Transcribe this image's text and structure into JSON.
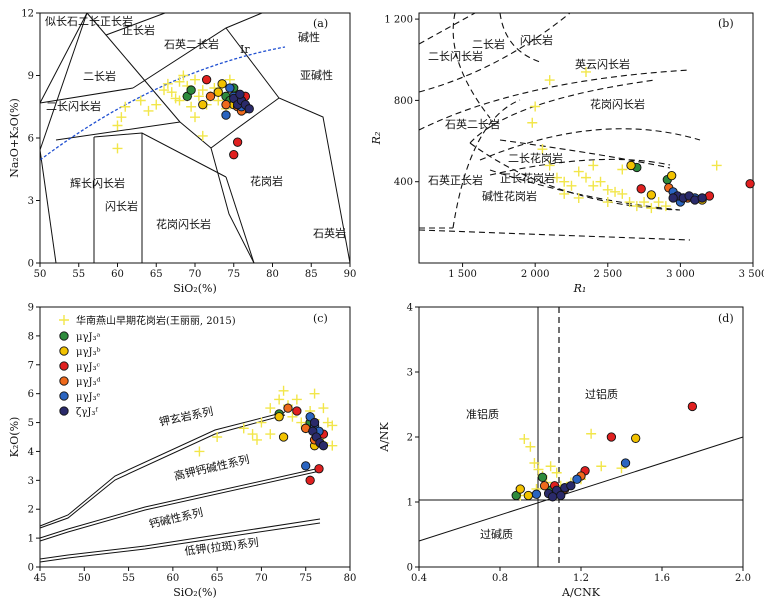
{
  "colors": {
    "axis": "#111111",
    "cross": "#f2e64a",
    "Ir_line": "#1f4fd1",
    "a": "#2e8b3c",
    "b": "#f2c200",
    "c": "#e02020",
    "d": "#ef6a1c",
    "e": "#2a64c0",
    "f": "#2a2a6a"
  },
  "chart_data": [
    {
      "id": "a",
      "type": "scatter",
      "panel_label": "(a)",
      "xlabel": "SiO₂(%)",
      "ylabel": "Na₂O+K₂O(%)",
      "xlim": [
        50,
        90
      ],
      "ylim": [
        0,
        12
      ],
      "xticks": [
        50,
        55,
        60,
        65,
        70,
        75,
        80,
        85,
        90
      ],
      "yticks": [
        0,
        3,
        6,
        9,
        12
      ],
      "field_labels": [
        "似长石二长正长岩",
        "正长岩",
        "石英二长岩",
        "二长岩",
        "二长闪长岩",
        "辉长闪长岩",
        "闪长岩",
        "花岗闪长岩",
        "花岗岩",
        "石英岩",
        "碱性",
        "亚碱性",
        "Ir"
      ],
      "crosses": [
        [
          60,
          6.6
        ],
        [
          60,
          5.5
        ],
        [
          60.5,
          7.0
        ],
        [
          61,
          7.5
        ],
        [
          63,
          7.8
        ],
        [
          64,
          7.3
        ],
        [
          65,
          7.6
        ],
        [
          66,
          8.3
        ],
        [
          66.5,
          8.6
        ],
        [
          67,
          8.2
        ],
        [
          67.5,
          7.9
        ],
        [
          68,
          8.7
        ],
        [
          68.5,
          9.0
        ],
        [
          69,
          8.5
        ],
        [
          69.5,
          7.5
        ],
        [
          70,
          7.0
        ],
        [
          70.5,
          8.0
        ],
        [
          71,
          8.3
        ],
        [
          71.5,
          7.6
        ],
        [
          71,
          6.1
        ],
        [
          72,
          8.0
        ],
        [
          72.5,
          8.4
        ],
        [
          73,
          7.8
        ],
        [
          73.5,
          8.5
        ],
        [
          74,
          7.4
        ],
        [
          74.5,
          8.8
        ],
        [
          75,
          8.2
        ],
        [
          68,
          7.8
        ],
        [
          69,
          8.0
        ],
        [
          70,
          8.8
        ]
      ],
      "series": [
        {
          "name": "μγJ₃ᵃ",
          "points": [
            [
              69,
              8.0
            ],
            [
              69.5,
              8.3
            ],
            [
              74,
              8.0
            ],
            [
              74.5,
              7.8
            ],
            [
              75,
              8.4
            ]
          ]
        },
        {
          "name": "μγJ₃ᵇ",
          "points": [
            [
              71,
              7.6
            ],
            [
              73,
              8.2
            ],
            [
              73.5,
              8.6
            ],
            [
              75,
              7.6
            ],
            [
              76,
              7.6
            ],
            [
              76.5,
              7.4
            ]
          ]
        },
        {
          "name": "μγJ₃ᶜ",
          "points": [
            [
              71.5,
              8.8
            ],
            [
              75,
              5.2
            ],
            [
              75.5,
              5.8
            ],
            [
              76,
              7.7
            ],
            [
              76.5,
              8.0
            ]
          ]
        },
        {
          "name": "μγJ₃ᵈ",
          "points": [
            [
              72,
              8.0
            ],
            [
              74,
              7.6
            ],
            [
              75.5,
              7.5
            ],
            [
              76,
              7.3
            ]
          ]
        },
        {
          "name": "μγJ₃ᵉ",
          "points": [
            [
              74,
              7.1
            ],
            [
              74.5,
              8.4
            ],
            [
              75,
              8.0
            ],
            [
              75.5,
              7.8
            ],
            [
              76,
              7.5
            ]
          ]
        },
        {
          "name": "ζγJ₃ᶠ",
          "points": [
            [
              75,
              7.9
            ],
            [
              75.5,
              7.6
            ],
            [
              76,
              7.8
            ],
            [
              76.5,
              7.6
            ],
            [
              77,
              7.4
            ],
            [
              75.8,
              8.1
            ]
          ]
        }
      ]
    },
    {
      "id": "b",
      "type": "scatter",
      "panel_label": "(b)",
      "xlabel": "R₁",
      "ylabel": "R₂",
      "xlim": [
        1200,
        3500
      ],
      "ylim": [
        0,
        1230
      ],
      "xticks": [
        1500,
        2000,
        2500,
        3000,
        3500
      ],
      "xtick_labels": [
        "1 500",
        "2 000",
        "2 500",
        "3 000",
        "3 500"
      ],
      "yticks": [
        400,
        800,
        1200
      ],
      "ytick_labels": [
        "400",
        "800",
        "1 200"
      ],
      "field_labels": [
        "二长岩",
        "二长闪长岩",
        "闪长岩",
        "英云闪长岩",
        "花岗闪长岩",
        "石英二长岩",
        "二长花岗岩",
        "正长花岗岩",
        "石英正长岩",
        "碱性花岗岩"
      ],
      "crosses": [
        [
          2100,
          900
        ],
        [
          2350,
          940
        ],
        [
          2000,
          770
        ],
        [
          1980,
          690
        ],
        [
          2050,
          560
        ],
        [
          2100,
          480
        ],
        [
          2150,
          420
        ],
        [
          2200,
          400
        ],
        [
          2250,
          380
        ],
        [
          2300,
          450
        ],
        [
          2350,
          420
        ],
        [
          2400,
          380
        ],
        [
          2450,
          400
        ],
        [
          2500,
          360
        ],
        [
          2550,
          350
        ],
        [
          2600,
          340
        ],
        [
          2650,
          300
        ],
        [
          2700,
          280
        ],
        [
          2750,
          300
        ],
        [
          2800,
          270
        ],
        [
          2850,
          300
        ],
        [
          2900,
          280
        ],
        [
          3250,
          480
        ],
        [
          2500,
          300
        ],
        [
          2600,
          460
        ],
        [
          2400,
          480
        ],
        [
          2200,
          340
        ],
        [
          2300,
          320
        ]
      ],
      "series": [
        {
          "name": "μγJ₃ᵃ",
          "points": [
            [
              2700,
              470
            ],
            [
              2910,
              410
            ]
          ]
        },
        {
          "name": "μγJ₃ᵇ",
          "points": [
            [
              2660,
              480
            ],
            [
              2940,
              430
            ],
            [
              2800,
              335
            ],
            [
              3150,
              310
            ]
          ]
        },
        {
          "name": "μγJ₃ᶜ",
          "points": [
            [
              2730,
              365
            ],
            [
              3480,
              390
            ],
            [
              3000,
              320
            ],
            [
              3200,
              330
            ]
          ]
        },
        {
          "name": "μγJ₃ᵈ",
          "points": [
            [
              2920,
              370
            ],
            [
              2960,
              330
            ],
            [
              3050,
              320
            ]
          ]
        },
        {
          "name": "μγJ₃ᵉ",
          "points": [
            [
              2950,
              350
            ],
            [
              3000,
              300
            ],
            [
              3100,
              320
            ]
          ]
        },
        {
          "name": "ζγJ₃ᶠ",
          "points": [
            [
              2980,
              330
            ],
            [
              3020,
              320
            ],
            [
              3060,
              330
            ],
            [
              3100,
              310
            ],
            [
              3150,
              320
            ],
            [
              2950,
              320
            ]
          ]
        }
      ]
    },
    {
      "id": "c",
      "type": "scatter",
      "panel_label": "(c)",
      "xlabel": "SiO₂(%)",
      "ylabel": "K₂O(%)",
      "xlim": [
        45,
        80
      ],
      "ylim": [
        0,
        9
      ],
      "xticks": [
        45,
        50,
        55,
        60,
        65,
        70,
        75,
        80
      ],
      "yticks": [
        0,
        1,
        2,
        3,
        4,
        5,
        6,
        7,
        8,
        9
      ],
      "field_labels": [
        "钾玄岩系列",
        "高钾钙碱性系列",
        "钙碱性系列",
        "低钾(拉斑)系列"
      ],
      "legend": {
        "cross_label": "华南燕山早期花岗岩(王丽丽, 2015)",
        "series_labels": [
          "μγJ₃ᵃ",
          "μγJ₃ᵇ",
          "μγJ₃ᶜ",
          "μγJ₃ᵈ",
          "μγJ₃ᵉ",
          "ζγJ₃ᶠ"
        ]
      },
      "crosses": [
        [
          63,
          4.0
        ],
        [
          65,
          4.5
        ],
        [
          68,
          4.8
        ],
        [
          69,
          4.6
        ],
        [
          70,
          5.0
        ],
        [
          71,
          5.5
        ],
        [
          72,
          5.8
        ],
        [
          72.5,
          6.1
        ],
        [
          73,
          5.6
        ],
        [
          73.5,
          5.2
        ],
        [
          74,
          5.8
        ],
        [
          74.5,
          5.0
        ],
        [
          75,
          4.8
        ],
        [
          75.5,
          5.4
        ],
        [
          76,
          5.1
        ],
        [
          76.5,
          4.6
        ],
        [
          77,
          4.3
        ],
        [
          77.5,
          5.0
        ],
        [
          78,
          4.9
        ],
        [
          78,
          4.2
        ],
        [
          77,
          5.5
        ],
        [
          76,
          6.0
        ],
        [
          71,
          4.6
        ],
        [
          69.5,
          4.4
        ]
      ],
      "series": [
        {
          "name": "μγJ₃ᵃ",
          "points": [
            [
              72,
              5.3
            ],
            [
              76,
              4.4
            ],
            [
              75.5,
              5.0
            ]
          ]
        },
        {
          "name": "μγJ₃ᵇ",
          "points": [
            [
              72,
              5.2
            ],
            [
              72.5,
              4.5
            ],
            [
              75,
              4.8
            ],
            [
              76,
              4.2
            ]
          ]
        },
        {
          "name": "μγJ₃ᶜ",
          "points": [
            [
              74,
              5.4
            ],
            [
              75.5,
              3.0
            ],
            [
              76.5,
              3.4
            ],
            [
              77,
              4.6
            ]
          ]
        },
        {
          "name": "μγJ₃ᵈ",
          "points": [
            [
              73,
              5.5
            ],
            [
              75,
              4.8
            ],
            [
              76,
              4.4
            ]
          ]
        },
        {
          "name": "μγJ₃ᵉ",
          "points": [
            [
              75,
              3.5
            ],
            [
              75.5,
              5.2
            ],
            [
              76,
              4.9
            ],
            [
              76.5,
              4.7
            ]
          ]
        },
        {
          "name": "ζγJ₃ᶠ",
          "points": [
            [
              75.8,
              4.7
            ],
            [
              76.2,
              4.5
            ],
            [
              76.6,
              4.3
            ],
            [
              77,
              4.2
            ],
            [
              76,
              5.0
            ]
          ]
        }
      ]
    },
    {
      "id": "d",
      "type": "scatter",
      "panel_label": "(d)",
      "xlabel": "A/CNK",
      "ylabel": "A/NK",
      "xlim": [
        0.4,
        2.0
      ],
      "ylim": [
        0,
        4
      ],
      "xticks": [
        0.4,
        0.8,
        1.2,
        1.6,
        2.0
      ],
      "xtick_labels": [
        "0.4",
        "0.8",
        "1.2",
        "1.6",
        "2.0"
      ],
      "yticks": [
        0,
        1,
        2,
        3,
        4
      ],
      "field_labels": [
        "准铝质",
        "过铝质",
        "过碱质"
      ],
      "crosses": [
        [
          0.92,
          1.97
        ],
        [
          0.95,
          1.85
        ],
        [
          0.97,
          1.6
        ],
        [
          0.99,
          1.5
        ],
        [
          1.01,
          1.4
        ],
        [
          1.03,
          1.3
        ],
        [
          1.05,
          1.55
        ],
        [
          1.08,
          1.45
        ],
        [
          1.1,
          1.25
        ],
        [
          1.15,
          1.3
        ],
        [
          1.2,
          1.35
        ],
        [
          1.25,
          2.05
        ],
        [
          1.3,
          1.55
        ],
        [
          1.4,
          1.52
        ],
        [
          0.9,
          1.1
        ],
        [
          0.98,
          1.2
        ]
      ],
      "series": [
        {
          "name": "μγJ₃ᵃ",
          "points": [
            [
              0.88,
              1.1
            ],
            [
              1.01,
              1.38
            ],
            [
              1.05,
              1.18
            ]
          ]
        },
        {
          "name": "μγJ₃ᵇ",
          "points": [
            [
              0.9,
              1.2
            ],
            [
              0.94,
              1.1
            ],
            [
              1.47,
              1.98
            ],
            [
              1.1,
              1.15
            ]
          ]
        },
        {
          "name": "μγJ₃ᶜ",
          "points": [
            [
              1.35,
              2.0
            ],
            [
              1.75,
              2.47
            ],
            [
              1.07,
              1.25
            ],
            [
              1.22,
              1.48
            ]
          ]
        },
        {
          "name": "μγJ₃ᵈ",
          "points": [
            [
              1.02,
              1.25
            ],
            [
              1.2,
              1.4
            ],
            [
              1.12,
              1.2
            ]
          ]
        },
        {
          "name": "μγJ₃ᵉ",
          "points": [
            [
              0.98,
              1.12
            ],
            [
              1.42,
              1.6
            ],
            [
              1.18,
              1.35
            ]
          ]
        },
        {
          "name": "ζγJ₃ᶠ",
          "points": [
            [
              1.04,
              1.13
            ],
            [
              1.08,
              1.18
            ],
            [
              1.12,
              1.22
            ],
            [
              1.15,
              1.25
            ],
            [
              1.1,
              1.1
            ],
            [
              1.06,
              1.08
            ]
          ]
        }
      ]
    }
  ]
}
